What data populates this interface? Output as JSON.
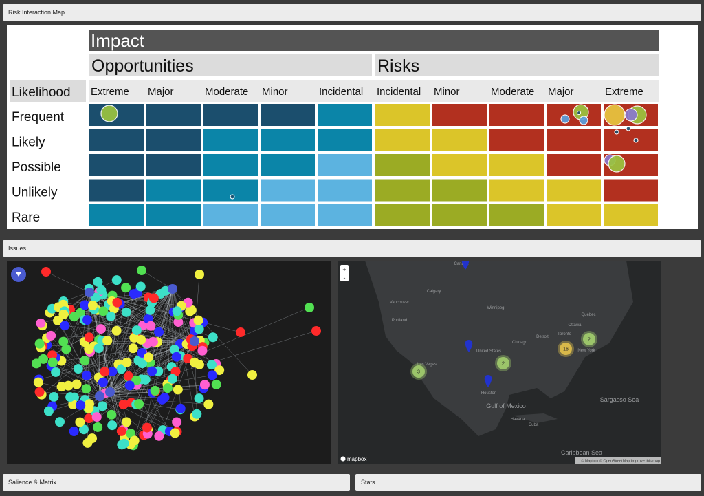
{
  "panels": {
    "risk_map": "Risk Interaction Map",
    "issues": "Issues",
    "salience": "Salience & Matrix",
    "stats": "Stats"
  },
  "matrix": {
    "impact": "Impact",
    "groups": [
      "Opportunities",
      "Risks"
    ],
    "likelihood": "Likelihood",
    "columns": [
      "Extreme",
      "Major",
      "Moderate",
      "Minor",
      "Incidental",
      "Incidental",
      "Minor",
      "Moderate",
      "Major",
      "Extreme"
    ],
    "rows": [
      "Frequent",
      "Likely",
      "Possible",
      "Unlikely",
      "Rare"
    ],
    "palette": {
      "D": "#1b4e6d",
      "T": "#0b85a8",
      "L": "#5cb3e0",
      "O": "#9bab24",
      "Y": "#dbc529",
      "R": "#b2301f"
    },
    "cells": [
      [
        "D",
        "D",
        "D",
        "D",
        "T",
        "Y",
        "R",
        "R",
        "R",
        "R"
      ],
      [
        "D",
        "D",
        "T",
        "T",
        "T",
        "Y",
        "Y",
        "R",
        "R",
        "R"
      ],
      [
        "D",
        "D",
        "T",
        "T",
        "L",
        "O",
        "Y",
        "Y",
        "R",
        "R"
      ],
      [
        "D",
        "T",
        "T",
        "L",
        "L",
        "O",
        "O",
        "Y",
        "Y",
        "R"
      ],
      [
        "T",
        "T",
        "L",
        "L",
        "L",
        "O",
        "O",
        "O",
        "Y",
        "Y"
      ]
    ]
  },
  "map": {
    "labels": [
      "Canada",
      "Vancouver",
      "Portland",
      "Calgary",
      "Winnipeg",
      "Chicago",
      "Detroit",
      "Toronto",
      "Ottawa",
      "Québec",
      "New York",
      "United States",
      "Las Vegas",
      "Houston",
      "Havana",
      "Cuba",
      "Sargasso Sea",
      "Caribbean Sea",
      "Gulf of Mexico"
    ],
    "clusters": [
      "3",
      "2",
      "16",
      "2"
    ],
    "zoom": [
      "+",
      "-"
    ],
    "logo": "mapbox",
    "attribution": "© Mapbox © OpenStreetMap Improve this map"
  }
}
